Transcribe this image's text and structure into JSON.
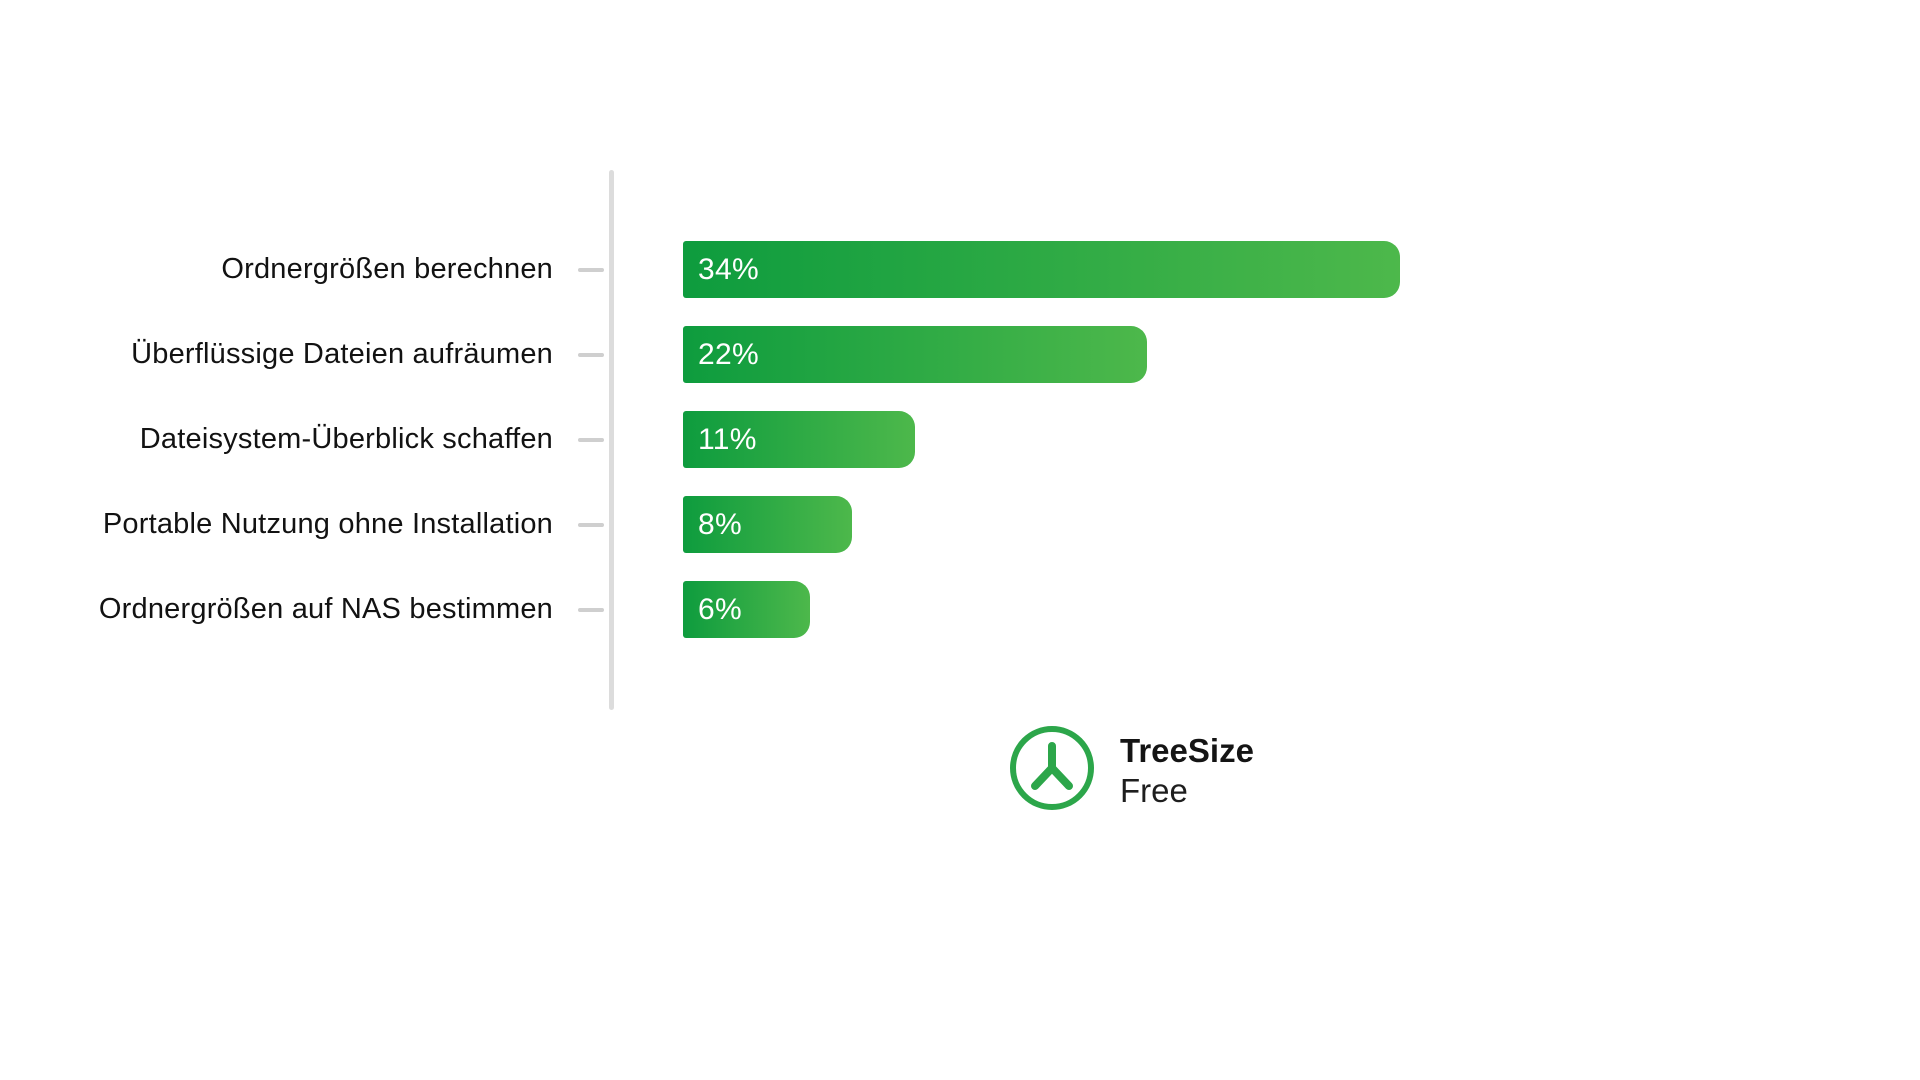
{
  "chart_data": {
    "type": "bar",
    "orientation": "horizontal",
    "title": "",
    "xlabel": "",
    "ylabel": "",
    "categories": [
      "Ordnergrößen berechnen",
      "Überflüssige Dateien aufräumen",
      "Dateisystem-Überblick schaffen",
      "Portable Nutzung ohne Installation",
      "Ordnergrößen auf NAS bestimmen"
    ],
    "values": [
      34,
      22,
      11,
      8,
      6
    ],
    "value_labels": [
      "34%",
      "22%",
      "11%",
      "8%",
      "6%"
    ],
    "xlim": [
      0,
      35
    ],
    "grid": false,
    "legend": false,
    "bar_gradient_start": "#0e9c3e",
    "bar_gradient_end": "#4db84b",
    "axis_color": "#dcdcdc",
    "value_label_color": "#ffffff",
    "category_label_color": "#121212"
  },
  "logo": {
    "name": "TreeSize",
    "edition": "Free",
    "accent_color": "#2ca64a"
  }
}
